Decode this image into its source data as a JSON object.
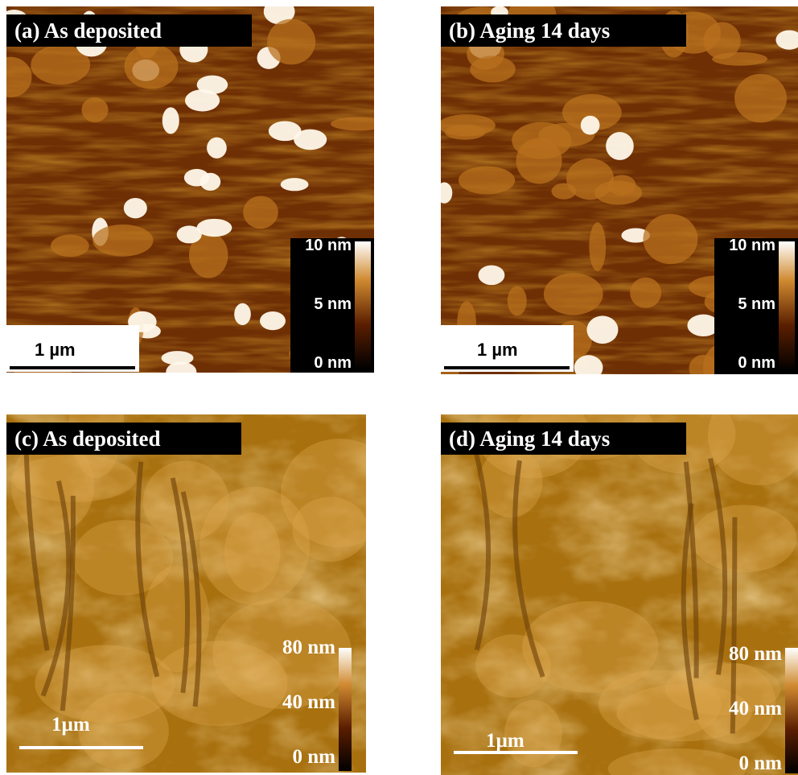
{
  "panels": [
    {
      "label": "(a) As deposited",
      "scale_bar": "1 µm",
      "colorbar": [
        "10 nm",
        "5 nm",
        "0 nm"
      ]
    },
    {
      "label": "(b) Aging 14 days",
      "scale_bar": "1 µm",
      "colorbar": [
        "10 nm",
        "5 nm",
        "0 nm"
      ]
    },
    {
      "label": "(c) As deposited",
      "scale_bar": "1µm",
      "colorbar": [
        "80 nm",
        "40 nm",
        "0 nm"
      ]
    },
    {
      "label": "(d) Aging 14 days",
      "scale_bar": "1µm",
      "colorbar": [
        "80 nm",
        "40 nm",
        "0 nm"
      ]
    }
  ]
}
